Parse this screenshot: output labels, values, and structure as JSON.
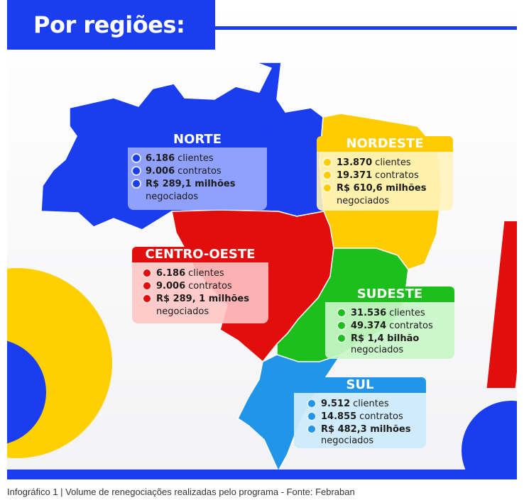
{
  "title": "Por regiões:",
  "caption": "Infográfico 1 | Volume de renegociações realizadas pelo programa - Fonte: Febraban",
  "colors": {
    "brand_blue": "#1a3df0",
    "norte": "#1a3df0",
    "nordeste": "#ffcc00",
    "centro_oeste": "#e20d0d",
    "sudeste": "#1cbf1c",
    "sul": "#2196e8"
  },
  "regions": {
    "norte": {
      "name": "NORTE",
      "clientes_num": "6.186",
      "clientes_lbl": "clientes",
      "contratos_num": "9.006",
      "contratos_lbl": "contratos",
      "valor": "R$ 289,1 milhões",
      "negociados": "negociados"
    },
    "nordeste": {
      "name": "NORDESTE",
      "clientes_num": "13.870",
      "clientes_lbl": "clientes",
      "contratos_num": "19.371",
      "contratos_lbl": "contratos",
      "valor": "R$ 610,6 milhões",
      "negociados": "negociados"
    },
    "centro_oeste": {
      "name": "CENTRO-OESTE",
      "clientes_num": "6.186",
      "clientes_lbl": "clientes",
      "contratos_num": "9.006",
      "contratos_lbl": "contratos",
      "valor": "R$ 289, 1 milhões",
      "negociados": "negociados"
    },
    "sudeste": {
      "name": "SUDESTE",
      "clientes_num": "31.536",
      "clientes_lbl": "clientes",
      "contratos_num": "49.374",
      "contratos_lbl": "contratos",
      "valor": "R$ 1,4 bilhão",
      "negociados": "negociados"
    },
    "sul": {
      "name": "SUL",
      "clientes_num": "9.512",
      "clientes_lbl": "clientes",
      "contratos_num": "14.855",
      "contratos_lbl": "contratos",
      "valor": "R$ 482,3 milhões",
      "negociados": "negociados"
    }
  }
}
